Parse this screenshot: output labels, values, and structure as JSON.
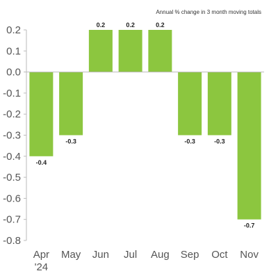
{
  "chart_data": {
    "type": "bar",
    "title": "",
    "annotation": "Annual % change in 3 month moving totals",
    "categories": [
      "Apr",
      "May",
      "Jun",
      "Jul",
      "Aug",
      "Sep",
      "Oct",
      "Nov"
    ],
    "category_sublabels": [
      "'24",
      "",
      "",
      "",
      "",
      "",
      "",
      ""
    ],
    "values": [
      -0.4,
      -0.3,
      0.2,
      0.2,
      0.2,
      -0.3,
      -0.3,
      -0.7
    ],
    "value_labels": [
      "-0.4",
      "-0.3",
      "0.2",
      "0.2",
      "0.2",
      "-0.3",
      "-0.3",
      "-0.7"
    ],
    "ylim": [
      -0.8,
      0.2
    ],
    "yticks": [
      0.2,
      0.1,
      0.0,
      -0.1,
      -0.2,
      -0.3,
      -0.4,
      -0.5,
      -0.6,
      -0.7,
      -0.8
    ],
    "ytick_labels": [
      "0.2",
      "0.1",
      "0.0",
      "-0.1",
      "-0.2",
      "-0.3",
      "-0.4",
      "-0.5",
      "-0.6",
      "-0.7",
      "-0.8"
    ],
    "xlabel": "",
    "ylabel": "",
    "grid": false,
    "bar_color": "#8cc63f",
    "axis_color": "#bbbbbb"
  }
}
